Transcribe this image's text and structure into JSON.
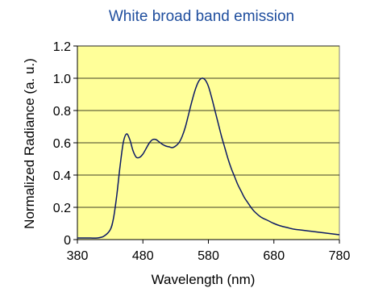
{
  "chart_data": {
    "type": "line",
    "title": "White broad band emission",
    "xlabel": "Wavelength (nm)",
    "ylabel": "Normalized Radiance (a. u.)",
    "xlim": [
      380,
      780
    ],
    "ylim": [
      0,
      1.2
    ],
    "x_ticks": [
      380,
      480,
      580,
      680,
      780
    ],
    "y_ticks": [
      0,
      0.2,
      0.4,
      0.6,
      0.8,
      1.0,
      1.2
    ],
    "x_tick_labels": [
      "380",
      "480",
      "580",
      "680",
      "780"
    ],
    "y_tick_labels": [
      "0",
      "0.2",
      "0.4",
      "0.6",
      "0.8",
      "1.0",
      "1.2"
    ],
    "grid": "horizontal",
    "legend": "none",
    "colors": {
      "plot_background": "#ffff99",
      "line": "#0c1a66",
      "title": "#1f4e9e",
      "grid": "#000000"
    },
    "series": [
      {
        "x": [
          380,
          390,
          400,
          410,
          420,
          430,
          435,
          440,
          445,
          450,
          455,
          460,
          465,
          470,
          475,
          480,
          485,
          490,
          495,
          500,
          505,
          510,
          515,
          520,
          525,
          530,
          535,
          540,
          545,
          550,
          555,
          560,
          565,
          570,
          575,
          580,
          585,
          590,
          595,
          600,
          605,
          610,
          615,
          620,
          625,
          630,
          635,
          640,
          645,
          650,
          660,
          670,
          680,
          690,
          700,
          710,
          720,
          730,
          740,
          750,
          760,
          770,
          780
        ],
        "y": [
          0.01,
          0.01,
          0.01,
          0.01,
          0.02,
          0.06,
          0.13,
          0.27,
          0.45,
          0.6,
          0.655,
          0.62,
          0.55,
          0.51,
          0.51,
          0.53,
          0.565,
          0.6,
          0.62,
          0.62,
          0.605,
          0.59,
          0.58,
          0.575,
          0.57,
          0.58,
          0.6,
          0.64,
          0.7,
          0.78,
          0.86,
          0.93,
          0.98,
          1.0,
          0.99,
          0.95,
          0.88,
          0.8,
          0.72,
          0.64,
          0.57,
          0.5,
          0.44,
          0.39,
          0.34,
          0.3,
          0.26,
          0.23,
          0.2,
          0.175,
          0.14,
          0.12,
          0.1,
          0.085,
          0.075,
          0.065,
          0.06,
          0.055,
          0.05,
          0.045,
          0.04,
          0.035,
          0.03
        ]
      }
    ]
  }
}
